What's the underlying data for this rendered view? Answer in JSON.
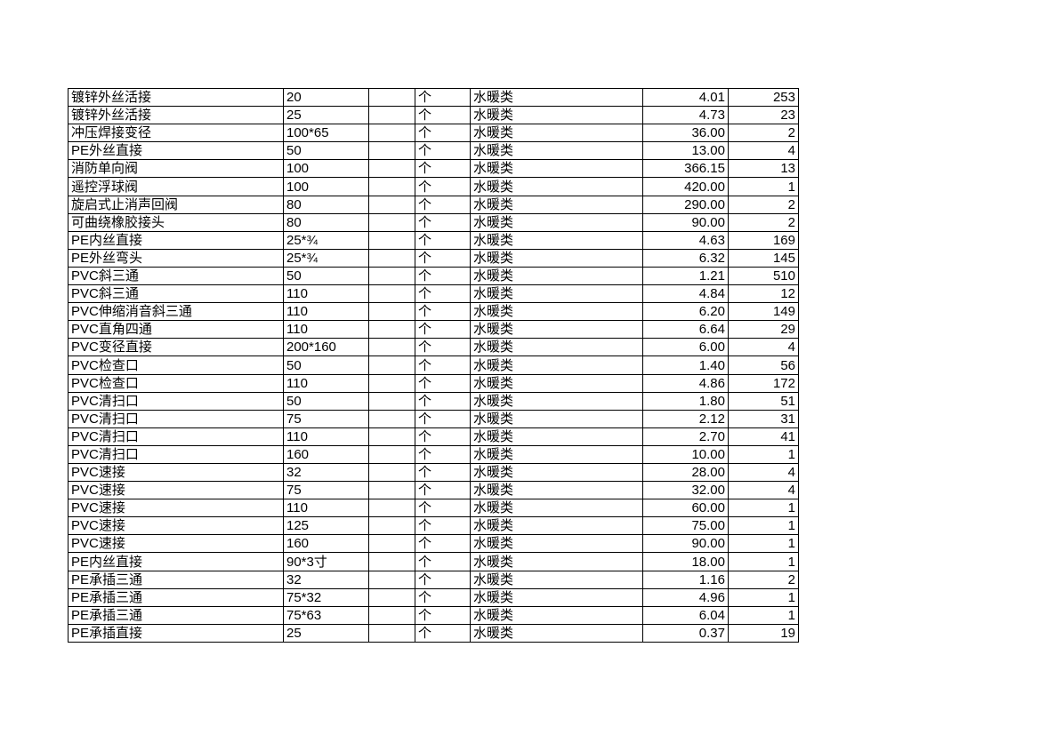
{
  "page": {
    "background_color": "#ffffff",
    "grid_line_color": "#000000",
    "text_color": "#000000"
  },
  "table": {
    "unit_common": "个",
    "category_common": "水暖类",
    "rows": [
      {
        "name": "镀锌外丝活接",
        "spec": "20",
        "unit": "个",
        "category": "水暖类",
        "price": "4.01",
        "qty": "253"
      },
      {
        "name": "镀锌外丝活接",
        "spec": "25",
        "unit": "个",
        "category": "水暖类",
        "price": "4.73",
        "qty": "23"
      },
      {
        "name": "冲压焊接变径",
        "spec": "100*65",
        "unit": "个",
        "category": "水暖类",
        "price": "36.00",
        "qty": "2"
      },
      {
        "name": "PE外丝直接",
        "spec": "50",
        "unit": "个",
        "category": "水暖类",
        "price": "13.00",
        "qty": "4"
      },
      {
        "name": "消防单向阀",
        "spec": "100",
        "unit": "个",
        "category": "水暖类",
        "price": "366.15",
        "qty": "13"
      },
      {
        "name": "遥控浮球阀",
        "spec": "100",
        "unit": "个",
        "category": "水暖类",
        "price": "420.00",
        "qty": "1"
      },
      {
        "name": "旋启式止消声回阀",
        "spec": "80",
        "unit": "个",
        "category": "水暖类",
        "price": "290.00",
        "qty": "2"
      },
      {
        "name": "可曲绕橡胶接头",
        "spec": "80",
        "unit": "个",
        "category": "水暖类",
        "price": "90.00",
        "qty": "2"
      },
      {
        "name": "PE内丝直接",
        "spec": "25*¾",
        "unit": "个",
        "category": "水暖类",
        "price": "4.63",
        "qty": "169"
      },
      {
        "name": "PE外丝弯头",
        "spec": "25*¾",
        "unit": "个",
        "category": "水暖类",
        "price": "6.32",
        "qty": "145"
      },
      {
        "name": "PVC斜三通",
        "spec": "50",
        "unit": "个",
        "category": "水暖类",
        "price": "1.21",
        "qty": "510"
      },
      {
        "name": "PVC斜三通",
        "spec": "110",
        "unit": "个",
        "category": "水暖类",
        "price": "4.84",
        "qty": "12"
      },
      {
        "name": "PVC伸缩消音斜三通",
        "spec": "110",
        "unit": "个",
        "category": "水暖类",
        "price": "6.20",
        "qty": "149"
      },
      {
        "name": "PVC直角四通",
        "spec": "110",
        "unit": "个",
        "category": "水暖类",
        "price": "6.64",
        "qty": "29"
      },
      {
        "name": "PVC变径直接",
        "spec": "200*160",
        "unit": "个",
        "category": "水暖类",
        "price": "6.00",
        "qty": "4"
      },
      {
        "name": "PVC检查口",
        "spec": "50",
        "unit": "个",
        "category": "水暖类",
        "price": "1.40",
        "qty": "56"
      },
      {
        "name": "PVC检查口",
        "spec": "110",
        "unit": "个",
        "category": "水暖类",
        "price": "4.86",
        "qty": "172"
      },
      {
        "name": "PVC清扫口",
        "spec": "50",
        "unit": "个",
        "category": "水暖类",
        "price": "1.80",
        "qty": "51"
      },
      {
        "name": "PVC清扫口",
        "spec": "75",
        "unit": "个",
        "category": "水暖类",
        "price": "2.12",
        "qty": "31"
      },
      {
        "name": "PVC清扫口",
        "spec": "110",
        "unit": "个",
        "category": "水暖类",
        "price": "2.70",
        "qty": "41"
      },
      {
        "name": "PVC清扫口",
        "spec": "160",
        "unit": "个",
        "category": "水暖类",
        "price": "10.00",
        "qty": "1"
      },
      {
        "name": "PVC速接",
        "spec": "32",
        "unit": "个",
        "category": "水暖类",
        "price": "28.00",
        "qty": "4"
      },
      {
        "name": "PVC速接",
        "spec": "75",
        "unit": "个",
        "category": "水暖类",
        "price": "32.00",
        "qty": "4"
      },
      {
        "name": "PVC速接",
        "spec": "110",
        "unit": "个",
        "category": "水暖类",
        "price": "60.00",
        "qty": "1"
      },
      {
        "name": "PVC速接",
        "spec": "125",
        "unit": "个",
        "category": "水暖类",
        "price": "75.00",
        "qty": "1"
      },
      {
        "name": "PVC速接",
        "spec": "160",
        "unit": "个",
        "category": "水暖类",
        "price": "90.00",
        "qty": "1"
      },
      {
        "name": "PE内丝直接",
        "spec": "90*3寸",
        "unit": "个",
        "category": "水暖类",
        "price": "18.00",
        "qty": "1"
      },
      {
        "name": "PE承插三通",
        "spec": "32",
        "unit": "个",
        "category": "水暖类",
        "price": "1.16",
        "qty": "2"
      },
      {
        "name": "PE承插三通",
        "spec": "75*32",
        "unit": "个",
        "category": "水暖类",
        "price": "4.96",
        "qty": "1"
      },
      {
        "name": "PE承插三通",
        "spec": "75*63",
        "unit": "个",
        "category": "水暖类",
        "price": "6.04",
        "qty": "1"
      },
      {
        "name": "PE承插直接",
        "spec": "25",
        "unit": "个",
        "category": "水暖类",
        "price": "0.37",
        "qty": "19"
      }
    ]
  }
}
